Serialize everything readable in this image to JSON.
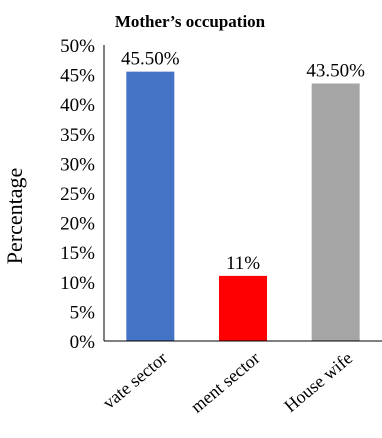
{
  "chart_data": {
    "type": "bar",
    "title": "Mother’s occupation",
    "ylabel": "Percentage",
    "xlabel": "",
    "ylim": [
      0,
      50
    ],
    "yticks": [
      "0%",
      "5%",
      "10%",
      "15%",
      "20%",
      "25%",
      "30%",
      "35%",
      "40%",
      "45%",
      "50%"
    ],
    "ytick_values": [
      0,
      5,
      10,
      15,
      20,
      25,
      30,
      35,
      40,
      45,
      50
    ],
    "grid": false,
    "legend": "none",
    "categories": [
      "Private sector",
      "Government sector",
      "House wife"
    ],
    "category_labels_visible": [
      "vate sector",
      "ment sector",
      "House wife"
    ],
    "values": [
      45.5,
      11,
      43.5
    ],
    "data_labels": [
      "45.50%",
      "11%",
      "43.50%"
    ],
    "colors": [
      "#4472C4",
      "#FF0000",
      "#A5A5A5"
    ]
  }
}
